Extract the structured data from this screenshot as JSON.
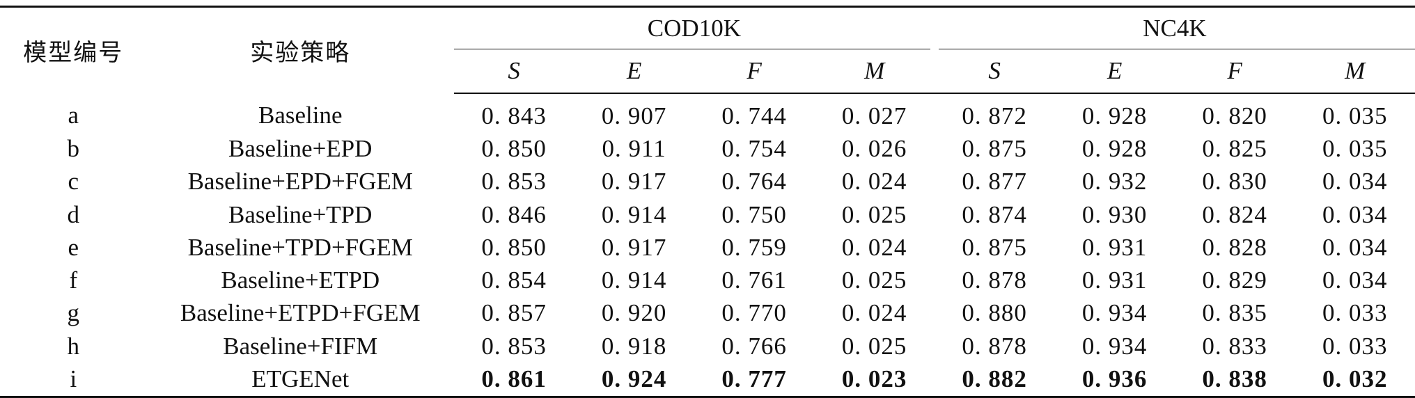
{
  "header": {
    "model_id": "模型编号",
    "strategy": "实验策略",
    "groups": [
      "COD10K",
      "NC4K"
    ],
    "metrics": [
      "S",
      "E",
      "F",
      "M",
      "S",
      "E",
      "F",
      "M"
    ]
  },
  "rows": [
    {
      "id": "a",
      "strategy": "Baseline",
      "values": [
        "0. 843",
        "0. 907",
        "0. 744",
        "0. 027",
        "0. 872",
        "0. 928",
        "0. 820",
        "0. 035"
      ]
    },
    {
      "id": "b",
      "strategy": "Baseline+EPD",
      "values": [
        "0. 850",
        "0. 911",
        "0. 754",
        "0. 026",
        "0. 875",
        "0. 928",
        "0. 825",
        "0. 035"
      ]
    },
    {
      "id": "c",
      "strategy": "Baseline+EPD+FGEM",
      "values": [
        "0. 853",
        "0. 917",
        "0. 764",
        "0. 024",
        "0. 877",
        "0. 932",
        "0. 830",
        "0. 034"
      ]
    },
    {
      "id": "d",
      "strategy": "Baseline+TPD",
      "values": [
        "0. 846",
        "0. 914",
        "0. 750",
        "0. 025",
        "0. 874",
        "0. 930",
        "0. 824",
        "0. 034"
      ]
    },
    {
      "id": "e",
      "strategy": "Baseline+TPD+FGEM",
      "values": [
        "0. 850",
        "0. 917",
        "0. 759",
        "0. 024",
        "0. 875",
        "0. 931",
        "0. 828",
        "0. 034"
      ]
    },
    {
      "id": "f",
      "strategy": "Baseline+ETPD",
      "values": [
        "0. 854",
        "0. 914",
        "0. 761",
        "0. 025",
        "0. 878",
        "0. 931",
        "0. 829",
        "0. 034"
      ]
    },
    {
      "id": "g",
      "strategy": "Baseline+ETPD+FGEM",
      "values": [
        "0. 857",
        "0. 920",
        "0. 770",
        "0. 024",
        "0. 880",
        "0. 934",
        "0. 835",
        "0. 033"
      ]
    },
    {
      "id": "h",
      "strategy": "Baseline+FIFM",
      "values": [
        "0. 853",
        "0. 918",
        "0. 766",
        "0. 025",
        "0. 878",
        "0. 934",
        "0. 833",
        "0. 033"
      ]
    },
    {
      "id": "i",
      "strategy": "ETGENet",
      "values": [
        "0. 861",
        "0. 924",
        "0. 777",
        "0. 023",
        "0. 882",
        "0. 936",
        "0. 838",
        "0. 032"
      ]
    }
  ],
  "bold_row_index": 8
}
